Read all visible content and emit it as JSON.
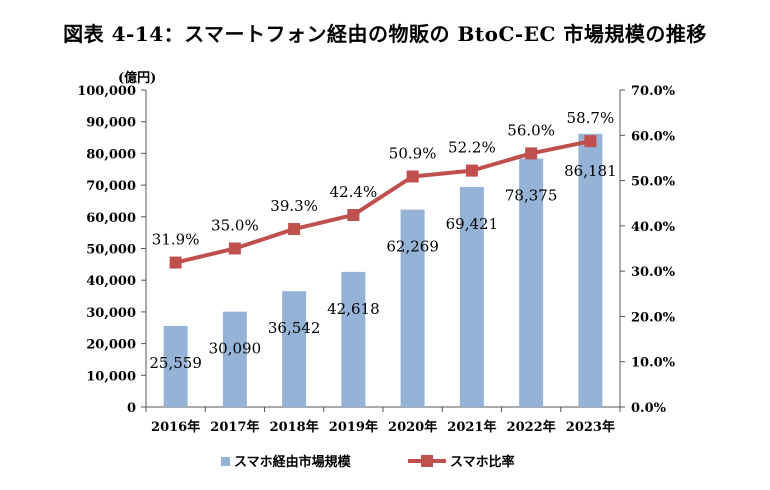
{
  "chart_data": {
    "type": "bar",
    "title": "図表 4-14：スマートフォン経由の物販の BtoC-EC 市場規模の推移",
    "categories": [
      "2016年",
      "2017年",
      "2018年",
      "2019年",
      "2020年",
      "2021年",
      "2022年",
      "2023年"
    ],
    "y_unit_label": "(億円)",
    "ylim": [
      0,
      100000
    ],
    "y2lim": [
      0,
      70
    ],
    "y_ticks": [
      "0",
      "10,000",
      "20,000",
      "30,000",
      "40,000",
      "50,000",
      "60,000",
      "70,000",
      "80,000",
      "90,000",
      "100,000"
    ],
    "y2_ticks": [
      "0.0%",
      "10.0%",
      "20.0%",
      "30.0%",
      "40.0%",
      "50.0%",
      "60.0%",
      "70.0%"
    ],
    "grid": false,
    "legend_position": "bottom",
    "series": [
      {
        "name": "スマホ経由市場規模",
        "type": "bar",
        "axis": "left",
        "color": "#95B3D7",
        "values": [
          25559,
          30090,
          36542,
          42618,
          62269,
          69421,
          78375,
          86181
        ],
        "labels": [
          "25,559",
          "30,090",
          "36,542",
          "42,618",
          "62,269",
          "69,421",
          "78,375",
          "86,181"
        ]
      },
      {
        "name": "スマホ比率",
        "type": "line",
        "axis": "right",
        "color": "#C0504D",
        "values": [
          31.9,
          35.0,
          39.3,
          42.4,
          50.9,
          52.2,
          56.0,
          58.7
        ],
        "labels": [
          "31.9%",
          "35.0%",
          "39.3%",
          "42.4%",
          "50.9%",
          "52.2%",
          "56.0%",
          "58.7%"
        ]
      }
    ]
  }
}
